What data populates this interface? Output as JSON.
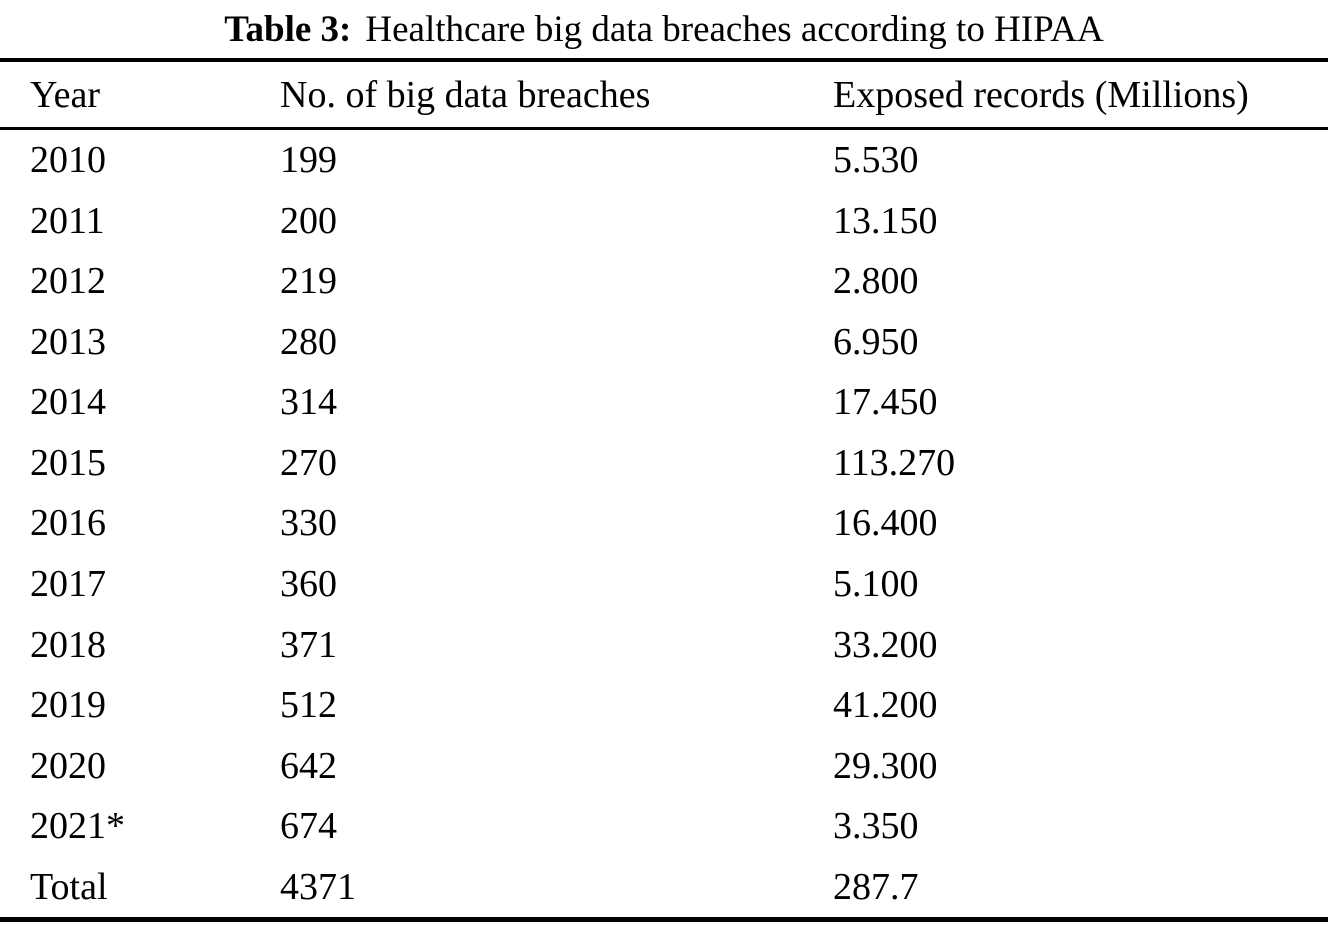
{
  "caption": {
    "label": "Table 3:",
    "text": "Healthcare big data breaches according to HIPAA"
  },
  "columns": [
    "Year",
    "No. of big data breaches",
    "Exposed records (Millions)"
  ],
  "rows": [
    [
      "2010",
      "199",
      "5.530"
    ],
    [
      "2011",
      "200",
      "13.150"
    ],
    [
      "2012",
      "219",
      "2.800"
    ],
    [
      "2013",
      "280",
      "6.950"
    ],
    [
      "2014",
      "314",
      "17.450"
    ],
    [
      "2015",
      "270",
      "113.270"
    ],
    [
      "2016",
      "330",
      "16.400"
    ],
    [
      "2017",
      "360",
      "5.100"
    ],
    [
      "2018",
      "371",
      "33.200"
    ],
    [
      "2019",
      "512",
      "41.200"
    ],
    [
      "2020",
      "642",
      "29.300"
    ],
    [
      "2021*",
      "674",
      "3.350"
    ]
  ],
  "totals": [
    "Total",
    "4371",
    "287.7"
  ],
  "colors": {
    "background": "#ffffff",
    "text": "#000000",
    "rule": "#000000"
  }
}
